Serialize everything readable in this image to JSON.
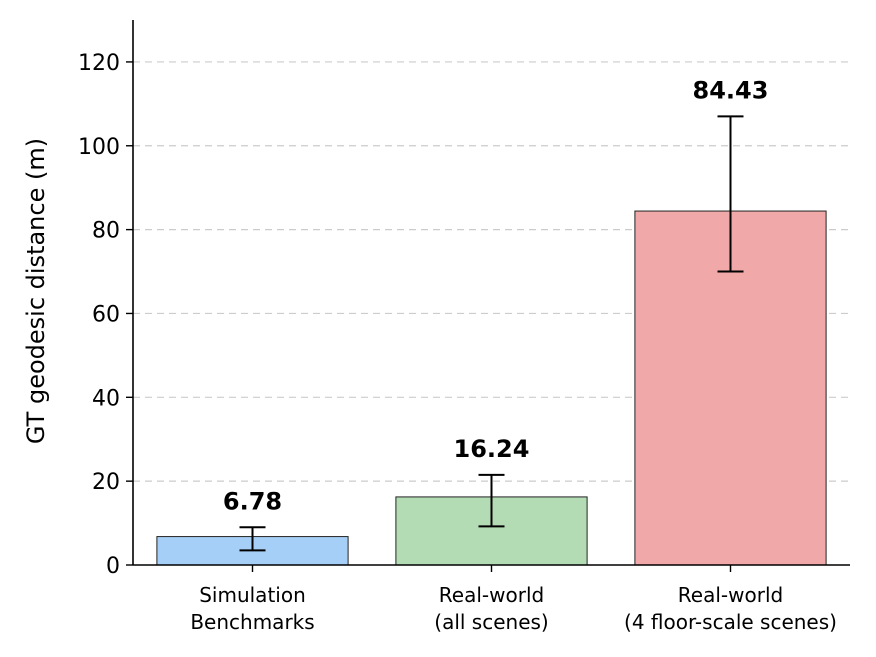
{
  "chart_data": {
    "type": "bar",
    "categories": [
      [
        "Simulation",
        "Benchmarks"
      ],
      [
        "Real-world",
        "(all scenes)"
      ],
      [
        "Real-world",
        "(4 floor-scale scenes)"
      ]
    ],
    "values": [
      6.78,
      16.24,
      84.43
    ],
    "value_labels": [
      "6.78",
      "16.24",
      "84.43"
    ],
    "error_low": [
      3.5,
      9.2,
      70.0
    ],
    "error_high": [
      9.0,
      21.5,
      107.0
    ],
    "colors": [
      "#a6cff7",
      "#b3dcb4",
      "#f0a8a8"
    ],
    "ylabel": "GT geodesic distance (m)",
    "ylim": [
      0,
      130
    ],
    "yticks": [
      0,
      20,
      40,
      60,
      80,
      100,
      120
    ],
    "grid": "y-dashed"
  }
}
